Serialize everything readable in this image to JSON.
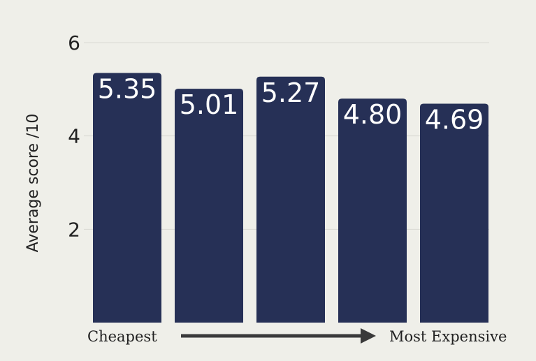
{
  "chart_data": {
    "type": "bar",
    "categories": [
      "",
      "",
      "",
      "",
      ""
    ],
    "values": [
      5.35,
      5.01,
      5.27,
      4.8,
      4.69
    ],
    "data_labels": [
      "5.35",
      "5.01",
      "5.27",
      "4.80",
      "4.69"
    ],
    "title": "",
    "xlabel": "",
    "ylabel": "Average score /10",
    "ylim": [
      0,
      6
    ],
    "yticks": [
      2,
      4,
      6
    ],
    "ytick_labels": [
      "2",
      "4",
      "6"
    ],
    "grid": true,
    "legend": "none",
    "x_start_label": "Cheapest",
    "x_end_label": "Most Expensive",
    "colors": {
      "bar": "#263056",
      "grid": "#d8d8d2",
      "arrow": "#3a3a3a",
      "background": "#efefe9"
    }
  }
}
